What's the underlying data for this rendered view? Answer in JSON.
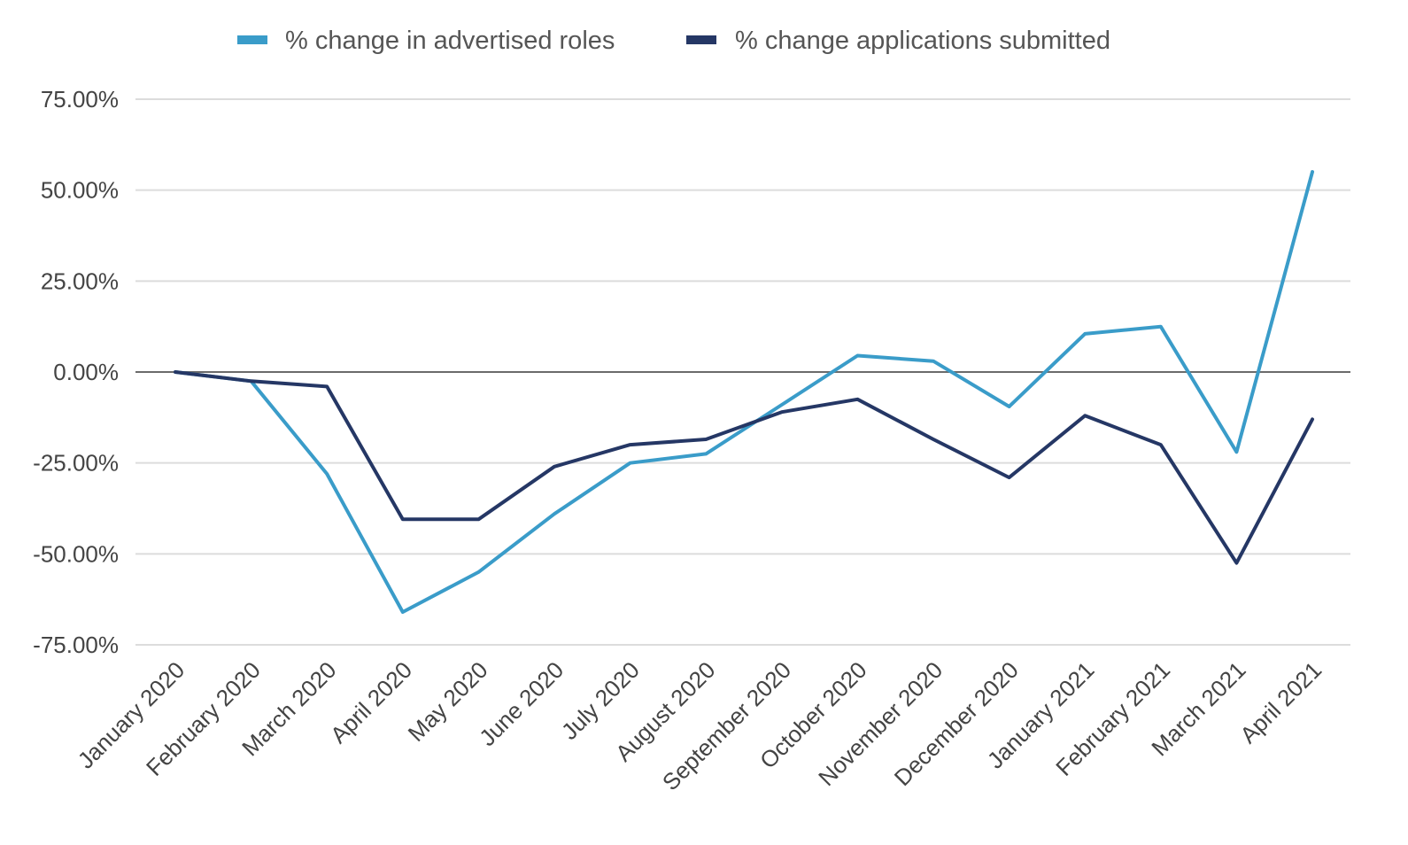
{
  "chart_data": {
    "type": "line",
    "title": "",
    "xlabel": "",
    "ylabel": "",
    "categories": [
      "January 2020",
      "February 2020",
      "March 2020",
      "April 2020",
      "May 2020",
      "June 2020",
      "July 2020",
      "August 2020",
      "September 2020",
      "October 2020",
      "November 2020",
      "December 2020",
      "January 2021",
      "February 2021",
      "March 2021",
      "April 2021"
    ],
    "series": [
      {
        "name": "% change in advertised roles",
        "color": "#3a9cc9",
        "values": [
          0,
          -2.5,
          -28,
          -66,
          -55,
          -39,
          -25,
          -22.5,
          -9,
          4.5,
          3,
          -9.5,
          10.5,
          12.5,
          -22,
          55
        ]
      },
      {
        "name": "% change applications submitted",
        "color": "#253765",
        "values": [
          0,
          -2.5,
          -4,
          -40.5,
          -40.5,
          -26,
          -20,
          -18.5,
          -11,
          -7.5,
          -18.5,
          -29,
          -12,
          -20,
          -52.5,
          -13
        ]
      }
    ],
    "y_ticks": [
      "75.00%",
      "50.00%",
      "25.00%",
      "0.00%",
      "-25.00%",
      "-50.00%",
      "-75.00%"
    ],
    "y_tick_values": [
      75,
      50,
      25,
      0,
      -25,
      -50,
      -75
    ],
    "ylim": [
      -75,
      75
    ],
    "grid": true,
    "legend_position": "top"
  }
}
